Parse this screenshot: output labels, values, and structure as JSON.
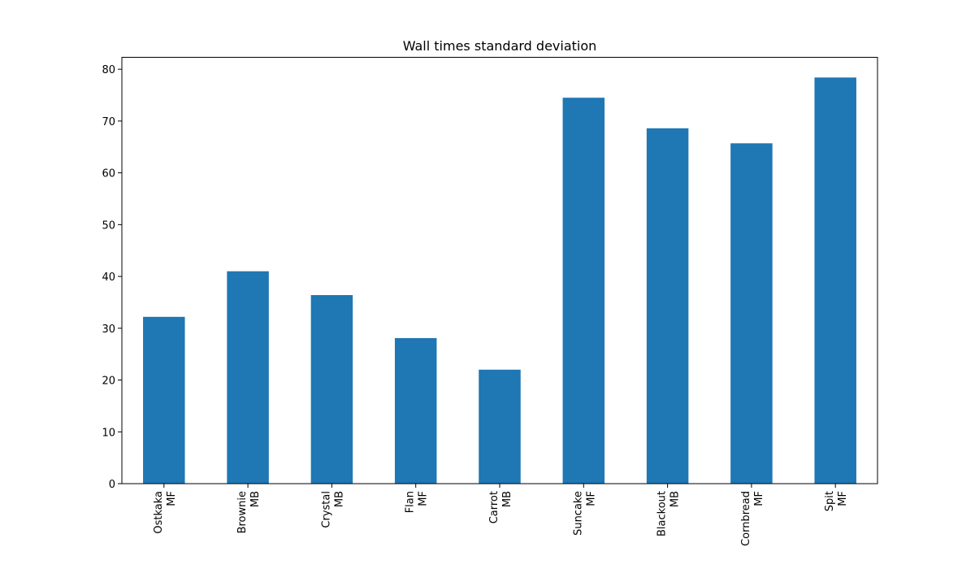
{
  "chart_data": {
    "type": "bar",
    "title": "Wall times standard deviation",
    "xlabel": "",
    "ylabel": "",
    "categories": [
      [
        "Ostkaka",
        "MF"
      ],
      [
        "Brownie",
        "MB"
      ],
      [
        "Crystal",
        "MB"
      ],
      [
        "Flan",
        "MF"
      ],
      [
        "Carrot",
        "MB"
      ],
      [
        "Suncake",
        "MF"
      ],
      [
        "Blackout",
        "MB"
      ],
      [
        "Cornbread",
        "MF"
      ],
      [
        "Spit",
        "MF"
      ]
    ],
    "values": [
      32.2,
      41.0,
      36.4,
      28.1,
      22.0,
      74.5,
      68.6,
      65.7,
      78.4
    ],
    "ylim": [
      0,
      82.3
    ],
    "yticks": [
      0,
      10,
      20,
      30,
      40,
      50,
      60,
      70,
      80
    ],
    "bar_color": "#1f77b4",
    "grid": false,
    "legend": "none"
  }
}
